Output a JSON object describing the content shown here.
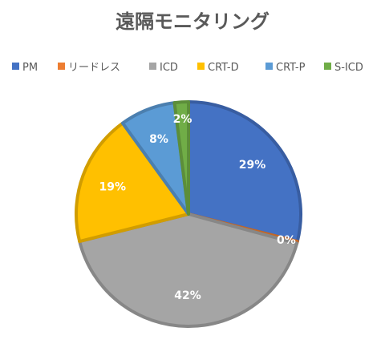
{
  "chart_data": {
    "type": "pie",
    "title": "遠隔モニタリング",
    "legend_position": "top",
    "slices": [
      {
        "name": "PM",
        "value": 29,
        "label": "29%",
        "color": "#4472C4"
      },
      {
        "name": "リードレス",
        "value": 0.3,
        "label": "0%",
        "color": "#ED7D31"
      },
      {
        "name": "ICD",
        "value": 42,
        "label": "42%",
        "color": "#A5A5A5"
      },
      {
        "name": "CRT-D",
        "value": 19,
        "label": "19%",
        "color": "#FFC000"
      },
      {
        "name": "CRT-P",
        "value": 8,
        "label": "8%",
        "color": "#5B9BD5"
      },
      {
        "name": "S-ICD",
        "value": 2,
        "label": "2%",
        "color": "#70AD47"
      }
    ]
  }
}
